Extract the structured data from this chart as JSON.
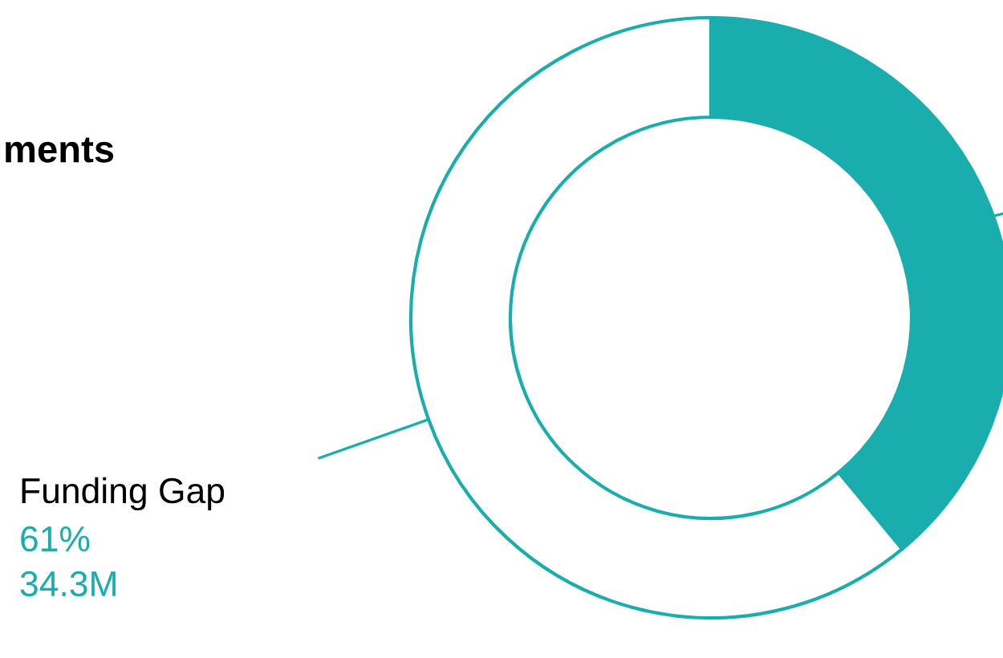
{
  "chart_data": {
    "type": "donut",
    "title": "ments",
    "categories": [
      "Funding Gap",
      null
    ],
    "values": [
      61,
      39
    ],
    "colors": [
      "#ffffff",
      "#1aadad"
    ],
    "value_labels": [
      "61%\n34.3M",
      null
    ]
  }
}
